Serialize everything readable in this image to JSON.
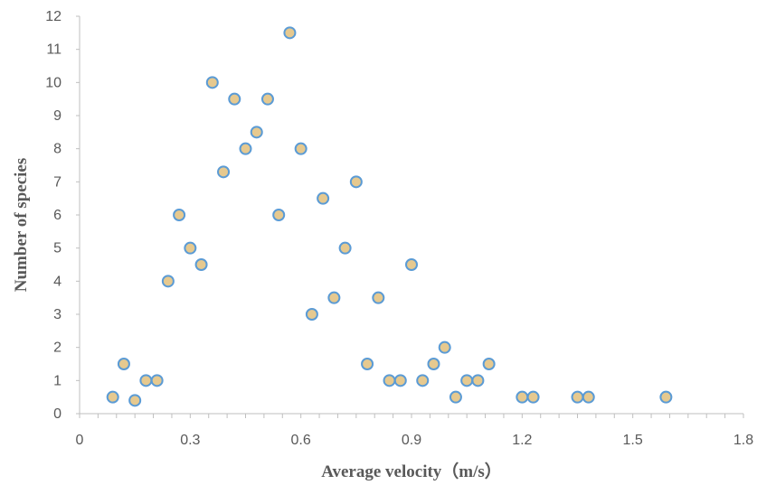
{
  "chart_data": {
    "type": "scatter",
    "title": "",
    "xlabel": "Average velocity（m/s）",
    "ylabel": "Number of species",
    "xlim": [
      0,
      1.8
    ],
    "ylim": [
      0,
      12
    ],
    "x_ticks": [
      "0",
      "0.3",
      "0.6",
      "0.9",
      "1.2",
      "1.5",
      "1.8"
    ],
    "y_ticks": [
      "0",
      "1",
      "2",
      "3",
      "4",
      "5",
      "6",
      "7",
      "8",
      "9",
      "10",
      "11",
      "12"
    ],
    "grid": false,
    "legend": "none",
    "marker_fill": "#e6c98f",
    "marker_stroke": "#5b9bd5",
    "series": [
      {
        "points": [
          [
            0.09,
            0.5
          ],
          [
            0.12,
            1.5
          ],
          [
            0.15,
            0.4
          ],
          [
            0.18,
            1.0
          ],
          [
            0.21,
            1.0
          ],
          [
            0.24,
            4.0
          ],
          [
            0.27,
            6.0
          ],
          [
            0.3,
            5.0
          ],
          [
            0.33,
            4.5
          ],
          [
            0.36,
            10.0
          ],
          [
            0.39,
            7.3
          ],
          [
            0.42,
            9.5
          ],
          [
            0.45,
            8.0
          ],
          [
            0.48,
            8.5
          ],
          [
            0.51,
            9.5
          ],
          [
            0.54,
            6.0
          ],
          [
            0.57,
            11.5
          ],
          [
            0.6,
            8.0
          ],
          [
            0.63,
            3.0
          ],
          [
            0.66,
            6.5
          ],
          [
            0.69,
            3.5
          ],
          [
            0.72,
            5.0
          ],
          [
            0.75,
            7.0
          ],
          [
            0.78,
            1.5
          ],
          [
            0.81,
            3.5
          ],
          [
            0.84,
            1.0
          ],
          [
            0.87,
            1.0
          ],
          [
            0.9,
            4.5
          ],
          [
            0.93,
            1.0
          ],
          [
            0.96,
            1.5
          ],
          [
            0.99,
            2.0
          ],
          [
            1.02,
            0.5
          ],
          [
            1.05,
            1.0
          ],
          [
            1.08,
            1.0
          ],
          [
            1.11,
            1.5
          ],
          [
            1.2,
            0.5
          ],
          [
            1.23,
            0.5
          ],
          [
            1.35,
            0.5
          ],
          [
            1.38,
            0.5
          ],
          [
            1.59,
            0.5
          ]
        ]
      }
    ]
  }
}
